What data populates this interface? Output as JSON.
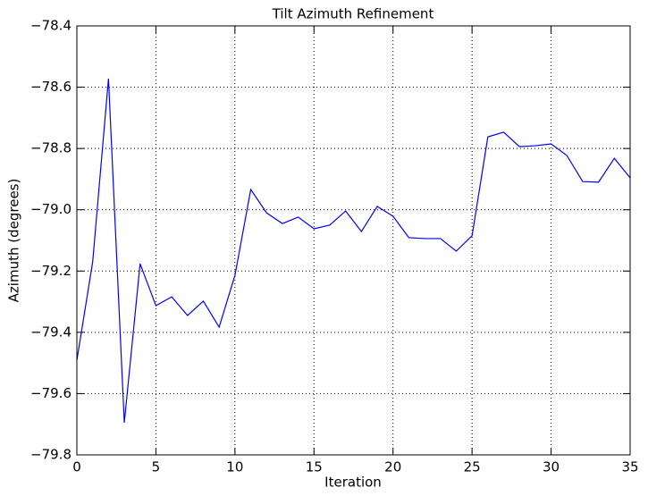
{
  "chart_data": {
    "type": "line",
    "title": "Tilt Azimuth Refinement",
    "x_label": "Iteration",
    "y_label": "Azimuth (degrees)",
    "x": [
      0,
      1,
      2,
      3,
      4,
      5,
      6,
      7,
      8,
      9,
      10,
      11,
      12,
      13,
      14,
      15,
      16,
      17,
      18,
      19,
      20,
      21,
      22,
      23,
      24,
      25,
      26,
      27,
      28,
      29,
      30,
      31,
      32,
      33,
      34,
      35
    ],
    "series": [
      {
        "name": "Azimuth",
        "color": "#0000ff",
        "values": [
          -79.491,
          -79.17,
          -78.572,
          -79.695,
          -79.176,
          -79.313,
          -79.284,
          -79.345,
          -79.298,
          -79.383,
          -79.214,
          -78.934,
          -79.01,
          -79.045,
          -79.024,
          -79.062,
          -79.05,
          -79.004,
          -79.071,
          -78.989,
          -79.021,
          -79.091,
          -79.094,
          -79.094,
          -79.135,
          -79.085,
          -78.762,
          -78.747,
          -78.794,
          -78.791,
          -78.785,
          -78.823,
          -78.908,
          -78.91,
          -78.832,
          -78.896
        ]
      }
    ],
    "xlim": [
      0,
      35
    ],
    "xticks": [
      0,
      5,
      10,
      15,
      20,
      25,
      30,
      35
    ],
    "ylim": [
      -79.8,
      -78.4
    ],
    "yticks": [
      {
        "value": -79.8,
        "label": "−79.8"
      },
      {
        "value": -79.6,
        "label": "−79.6"
      },
      {
        "value": -79.4,
        "label": "−79.4"
      },
      {
        "value": -79.2,
        "label": "−79.2"
      },
      {
        "value": -79.0,
        "label": "−79.0"
      },
      {
        "value": -78.8,
        "label": "−78.8"
      },
      {
        "value": -78.6,
        "label": "−78.6"
      },
      {
        "value": -78.4,
        "label": "−78.4"
      }
    ],
    "grid": true
  }
}
